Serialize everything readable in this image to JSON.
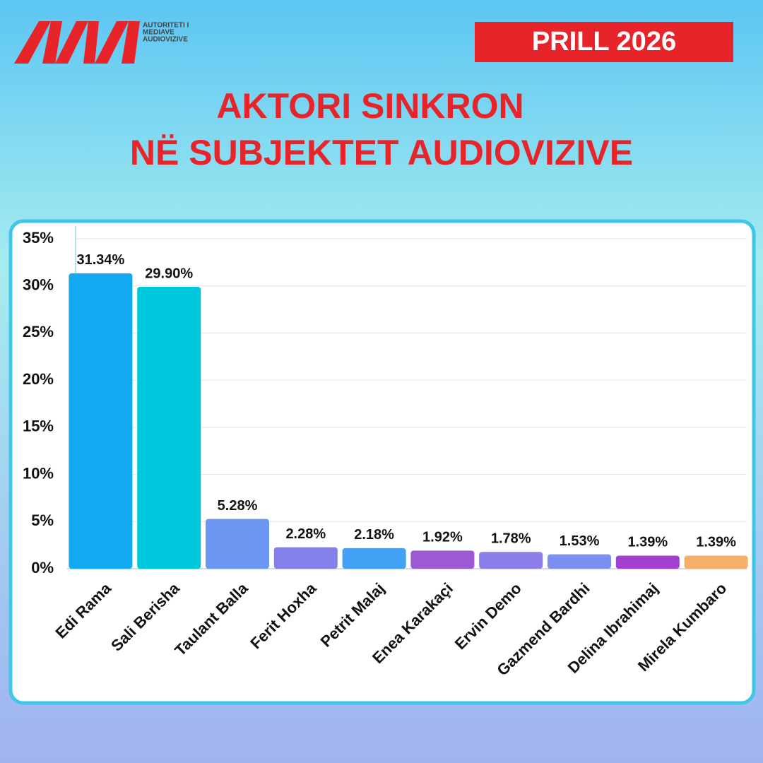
{
  "logo": {
    "lines": [
      "AUTORITETI I",
      "MEDIAVE",
      "AUDIOVIZIVE"
    ]
  },
  "header": {
    "date": "PRILL 2026"
  },
  "chart_data": {
    "type": "bar",
    "title": [
      "AKTORI SINKRON",
      "NË SUBJEKTET AUDIOVIZIVE"
    ],
    "categories": [
      "Edi Rama",
      "Sali Berisha",
      "Taulant Balla",
      "Ferit Hoxha",
      "Petrit Malaj",
      "Enea Karakaçi",
      "Ervin Demo",
      "Gazmend Bardhi",
      "Delina Ibrahimaj",
      "Mirela Kumbaro"
    ],
    "values": [
      31.34,
      29.9,
      5.28,
      2.28,
      2.18,
      1.92,
      1.78,
      1.53,
      1.39,
      1.39
    ],
    "value_labels": [
      "31.34%",
      "29.90%",
      "5.28%",
      "2.28%",
      "2.18%",
      "1.92%",
      "1.78%",
      "1.53%",
      "1.39%",
      "1.39%"
    ],
    "colors": [
      "#12a9f0",
      "#00c8dc",
      "#6b96f2",
      "#8480ea",
      "#42a0f5",
      "#9b59d3",
      "#8a7ee8",
      "#7b8ff0",
      "#a23fd0",
      "#f7b06a"
    ],
    "ylim": [
      0,
      35
    ],
    "yticks": [
      {
        "value": 0,
        "label": "0%"
      },
      {
        "value": 5,
        "label": "5%"
      },
      {
        "value": 10,
        "label": "10%"
      },
      {
        "value": 15,
        "label": "15%"
      },
      {
        "value": 20,
        "label": "20%"
      },
      {
        "value": 25,
        "label": "25%"
      },
      {
        "value": 30,
        "label": "30%"
      },
      {
        "value": 35,
        "label": "35%"
      }
    ],
    "grid": true
  }
}
